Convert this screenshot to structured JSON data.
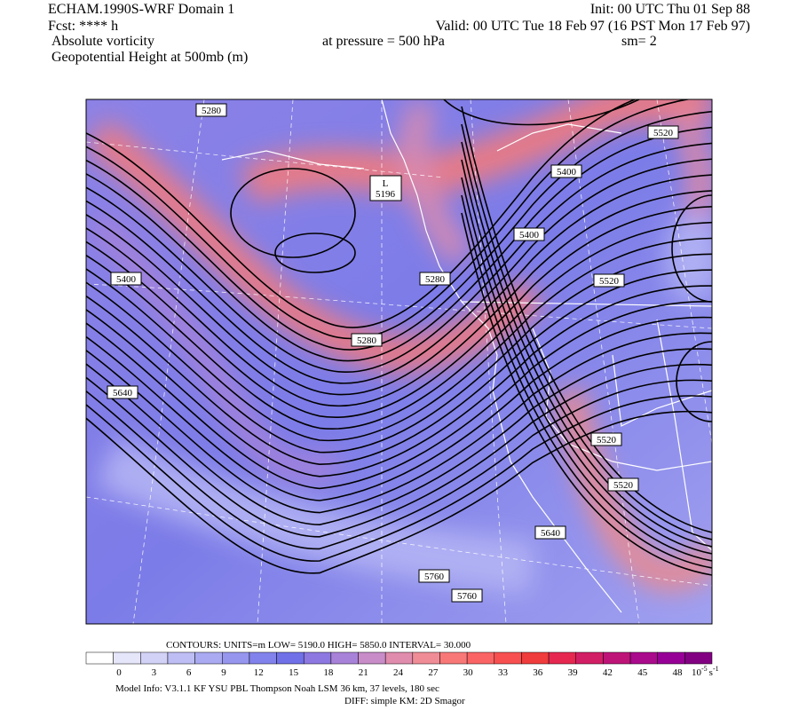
{
  "header": {
    "left": [
      "ECHAM.1990S-WRF Domain 1",
      "Fcst: **** h",
      "Absolute vorticity",
      "Geopotential Height at 500mb (m)"
    ],
    "init": "Init: 00 UTC Thu 01 Sep 88",
    "valid": "Valid: 00 UTC Tue 18 Feb 97 (16 PST Mon 17 Feb 97)",
    "pressure": "at pressure =  500 hPa",
    "sm": "sm= 2"
  },
  "map": {
    "contour_labels": [
      "5280",
      "5520",
      "5400",
      "5400",
      "5400",
      "5280",
      "5520",
      "5280",
      "5640",
      "5520",
      "5520",
      "5640",
      "5760",
      "5760"
    ],
    "low": {
      "symbol": "L",
      "value": "5196"
    }
  },
  "colorbar": {
    "contours": "CONTOURS:  UNITS=m  LOW=   5190.0       HIGH=   5850.0       INTERVAL=    30.000",
    "ticks": [
      0,
      3,
      6,
      9,
      12,
      15,
      18,
      21,
      24,
      27,
      30,
      33,
      36,
      39,
      42,
      45,
      48
    ],
    "units_base": "10",
    "units_exp": "-5",
    "units_var": "s",
    "units_var_exp": "-1",
    "colors": [
      "#ffffff",
      "#e6e6fa",
      "#d2d2f7",
      "#bebef5",
      "#aaaaf2",
      "#9696ef",
      "#8282ec",
      "#7070e8",
      "#8c78e0",
      "#a882d8",
      "#c88cc8",
      "#e08cac",
      "#f08c96",
      "#f87878",
      "#fa6464",
      "#f85050",
      "#f03c3c",
      "#e62850",
      "#d21e64",
      "#be1478",
      "#aa0a8c",
      "#960096",
      "#820082"
    ]
  },
  "footer": [
    "Model Info: V3.1.1    KF        YSU PBL    Thompson       Noah LSM   36 km,     37 levels,   180 sec",
    "DIFF: simple KM: 2D Smagor"
  ]
}
